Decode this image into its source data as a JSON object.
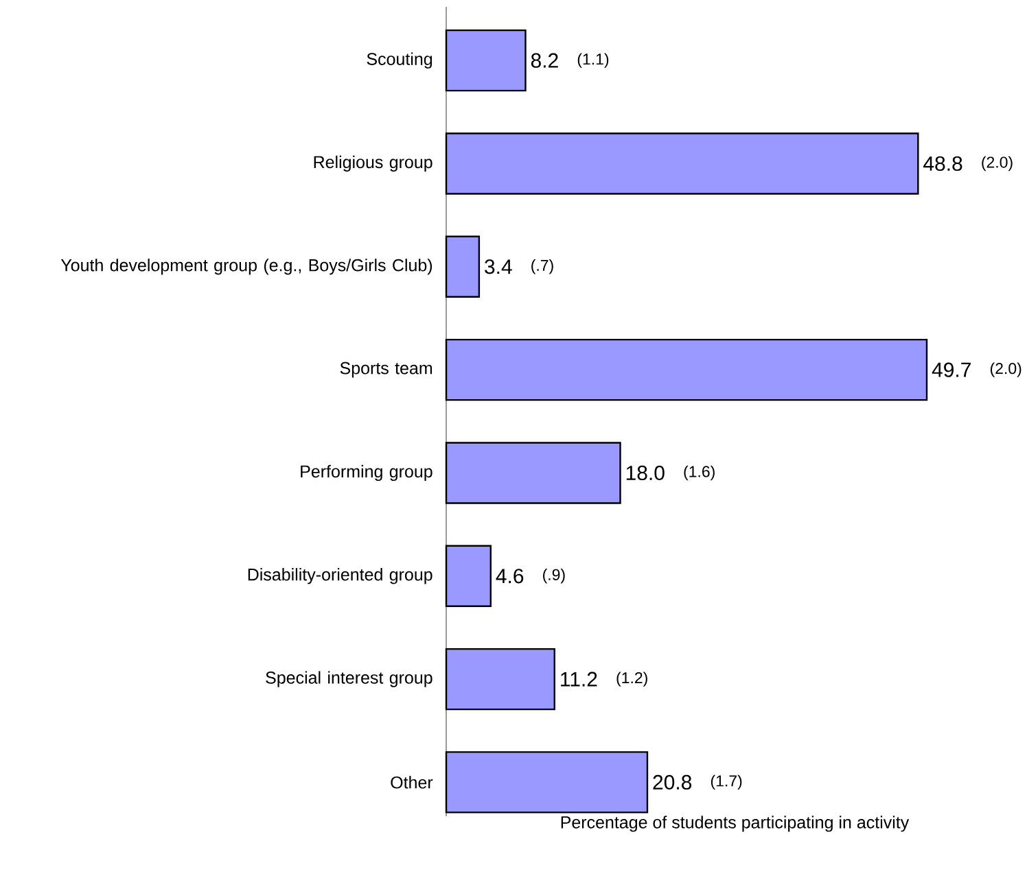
{
  "chart_data": {
    "type": "bar",
    "orientation": "horizontal",
    "xlabel": "Percentage of students participating in activity",
    "categories": [
      "Scouting",
      "Religious group",
      "Youth development group (e.g., Boys/Girls Club)",
      "Sports team",
      "Performing group",
      "Disability-oriented group",
      "Special interest group",
      "Other"
    ],
    "values": [
      8.2,
      48.8,
      3.4,
      49.7,
      18.0,
      4.6,
      11.2,
      20.8
    ],
    "value_labels": [
      "8.2",
      "48.8",
      "3.4",
      "49.7",
      "18.0",
      "4.6",
      "11.2",
      "20.8"
    ],
    "color": "#9999ff",
    "annotations": [
      "(1.1)",
      "(2.0)",
      "(.7)",
      "(2.0)",
      "(1.6)",
      "(.9)",
      "(1.2)",
      "(1.7)"
    ]
  }
}
